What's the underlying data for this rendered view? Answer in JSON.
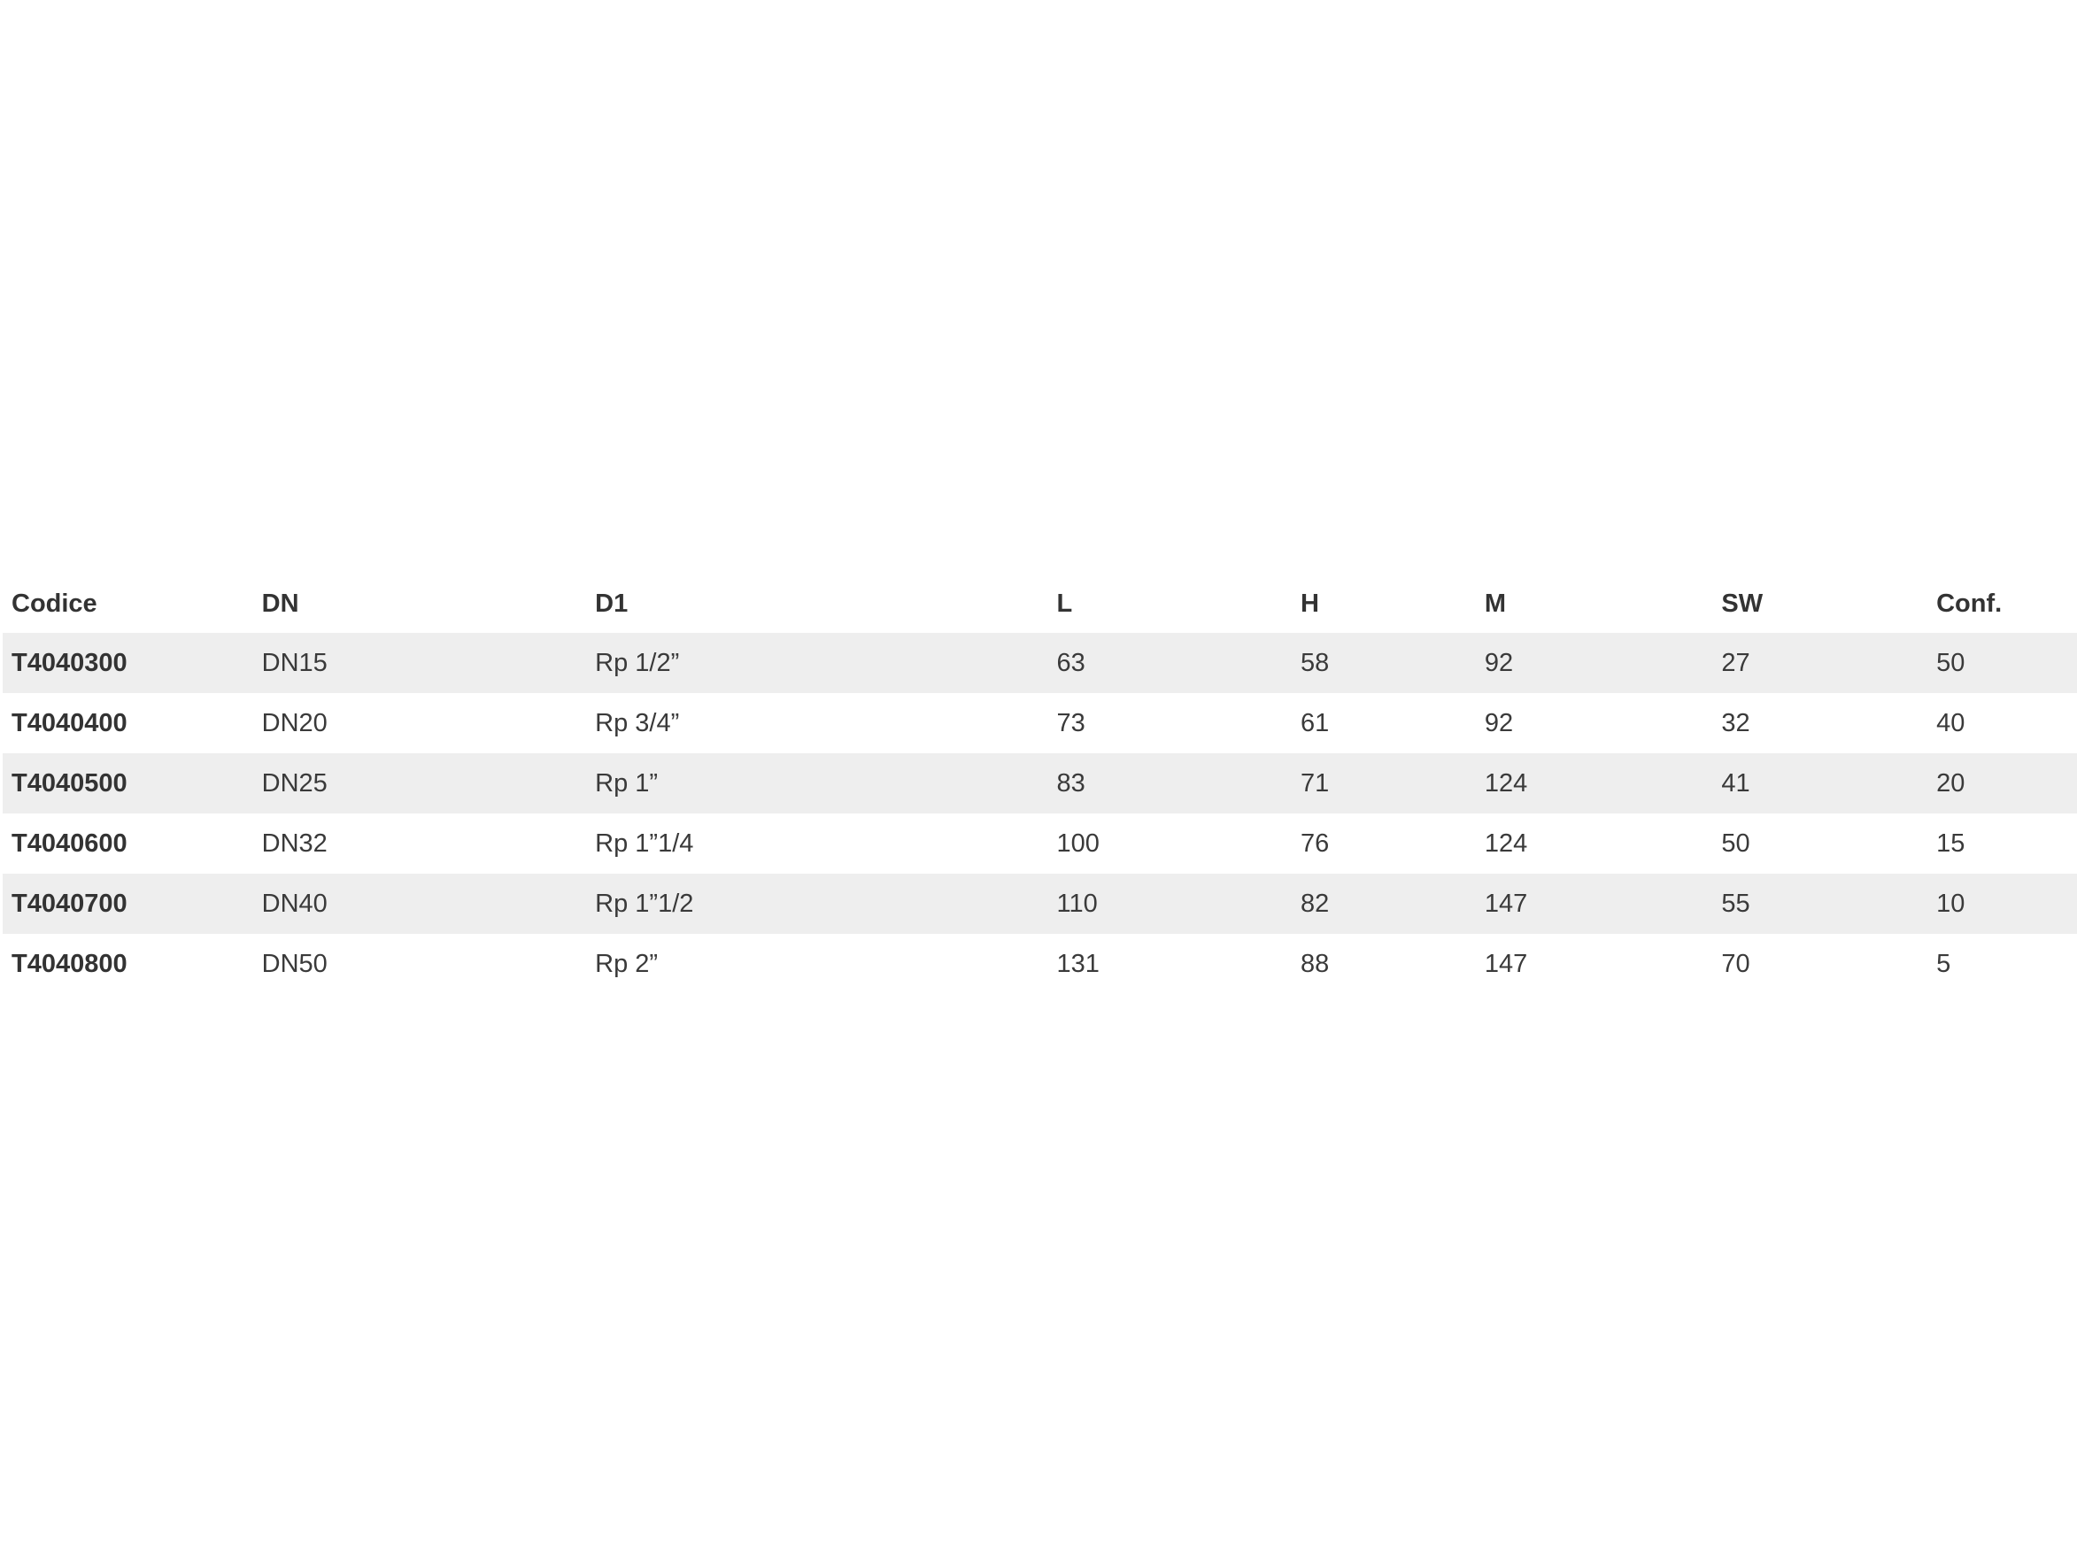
{
  "colors": {
    "background": "#ffffff",
    "stripe": "#eeeeee",
    "text": "#3a3a3a",
    "header_text": "#333333"
  },
  "table": {
    "columns": [
      "Codice",
      "DN",
      "D1",
      "L",
      "H",
      "M",
      "SW",
      "Conf."
    ],
    "rows": [
      {
        "codice": "T4040300",
        "dn": "DN15",
        "d1": "Rp 1/2”",
        "l": "63",
        "h": "58",
        "m": "92",
        "sw": "27",
        "conf": "50"
      },
      {
        "codice": "T4040400",
        "dn": "DN20",
        "d1": "Rp 3/4”",
        "l": "73",
        "h": "61",
        "m": "92",
        "sw": "32",
        "conf": "40"
      },
      {
        "codice": "T4040500",
        "dn": "DN25",
        "d1": "Rp 1”",
        "l": "83",
        "h": "71",
        "m": "124",
        "sw": "41",
        "conf": "20"
      },
      {
        "codice": "T4040600",
        "dn": "DN32",
        "d1": "Rp 1”1/4",
        "l": "100",
        "h": "76",
        "m": "124",
        "sw": "50",
        "conf": "15"
      },
      {
        "codice": "T4040700",
        "dn": "DN40",
        "d1": "Rp 1”1/2",
        "l": "110",
        "h": "82",
        "m": "147",
        "sw": "55",
        "conf": "10"
      },
      {
        "codice": "T4040800",
        "dn": "DN50",
        "d1": "Rp 2”",
        "l": "131",
        "h": "88",
        "m": "147",
        "sw": "70",
        "conf": "5"
      }
    ]
  }
}
